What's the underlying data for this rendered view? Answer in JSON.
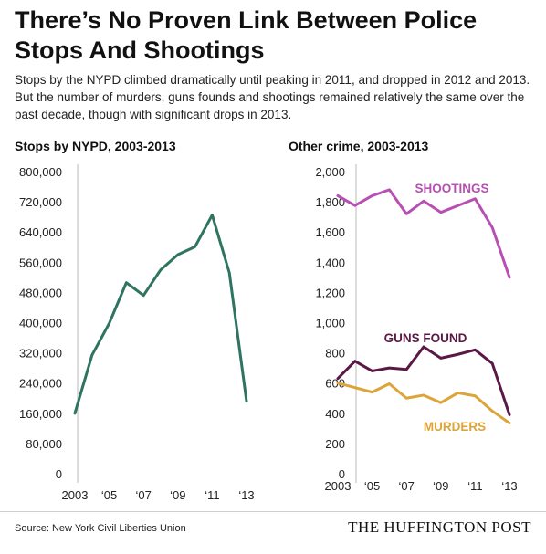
{
  "header": {
    "title": "There’s No Proven Link Between Police Stops And Shootings",
    "subtitle": "Stops by the NYPD climbed dramatically until peaking in 2011, and dropped in 2012 and 2013. But the number of murders, guns founds and shootings remained relatively the same over the past decade, though with significant drops in 2013."
  },
  "footer": {
    "source": "Source: New York Civil Liberties Union",
    "brand": "THE HUFFINGTON POST"
  },
  "chart_data": [
    {
      "type": "line",
      "title": "Stops by NYPD, 2003-2013",
      "x": [
        2003,
        2004,
        2005,
        2006,
        2007,
        2008,
        2009,
        2010,
        2011,
        2012,
        2013
      ],
      "x_tick_labels": [
        "2003",
        "‘05",
        "‘07",
        "‘09",
        "‘11",
        "‘13"
      ],
      "x_tick_values": [
        2003,
        2005,
        2007,
        2009,
        2011,
        2013
      ],
      "y_tick_labels": [
        "0",
        "80,000",
        "160,000",
        "240,000",
        "320,000",
        "400,000",
        "480,000",
        "560,000",
        "640,000",
        "720,000",
        "800,000"
      ],
      "ylim": [
        0,
        800000
      ],
      "grid": false,
      "series": [
        {
          "name": "",
          "color": "#2e7461",
          "values": [
            160000,
            314000,
            398000,
            506000,
            472000,
            540000,
            580000,
            601000,
            685000,
            532000,
            192000
          ]
        }
      ]
    },
    {
      "type": "line",
      "title": "Other crime, 2003-2013",
      "x": [
        2003,
        2004,
        2005,
        2006,
        2007,
        2008,
        2009,
        2010,
        2011,
        2012,
        2013
      ],
      "x_tick_labels": [
        "2003",
        "‘05",
        "‘07",
        "‘09",
        "‘11",
        "‘13"
      ],
      "x_tick_values": [
        2003,
        2005,
        2007,
        2009,
        2011,
        2013
      ],
      "y_tick_labels": [
        "0",
        "200",
        "400",
        "600",
        "800",
        "1,000",
        "1,200",
        "1,400",
        "1,600",
        "1,800",
        "2,000"
      ],
      "ylim": [
        0,
        2000
      ],
      "grid": false,
      "series": [
        {
          "name": "SHOOTINGS",
          "color": "#b84fb3",
          "values": [
            1840,
            1775,
            1840,
            1880,
            1720,
            1805,
            1730,
            1775,
            1820,
            1630,
            1300
          ]
        },
        {
          "name": "GUNS FOUND",
          "color": "#5a1846",
          "values": [
            630,
            745,
            680,
            700,
            690,
            840,
            765,
            790,
            820,
            730,
            390
          ]
        },
        {
          "name": "MURDERS",
          "color": "#dca53a",
          "values": [
            600,
            570,
            540,
            595,
            500,
            520,
            470,
            535,
            515,
            415,
            335
          ]
        }
      ]
    }
  ]
}
